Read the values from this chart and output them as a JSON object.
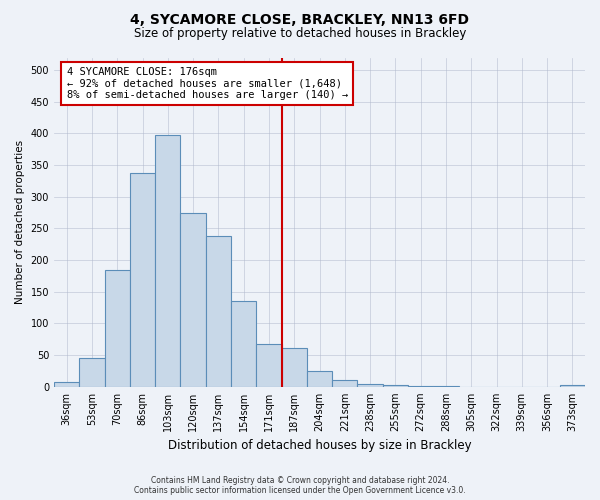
{
  "title": "4, SYCAMORE CLOSE, BRACKLEY, NN13 6FD",
  "subtitle": "Size of property relative to detached houses in Brackley",
  "xlabel": "Distribution of detached houses by size in Brackley",
  "ylabel": "Number of detached properties",
  "bin_labels": [
    "36sqm",
    "53sqm",
    "70sqm",
    "86sqm",
    "103sqm",
    "120sqm",
    "137sqm",
    "154sqm",
    "171sqm",
    "187sqm",
    "204sqm",
    "221sqm",
    "238sqm",
    "255sqm",
    "272sqm",
    "288sqm",
    "305sqm",
    "322sqm",
    "339sqm",
    "356sqm",
    "373sqm"
  ],
  "bar_heights": [
    8,
    45,
    185,
    338,
    397,
    275,
    238,
    135,
    68,
    62,
    25,
    11,
    5,
    3,
    2,
    1,
    0,
    0,
    0,
    0,
    3
  ],
  "bar_color": "#c8d8e8",
  "bar_edge_color": "#5b8db8",
  "vline_x": 9,
  "vline_label": "4 SYCAMORE CLOSE: 176sqm",
  "annotation_line1": "← 92% of detached houses are smaller (1,648)",
  "annotation_line2": "8% of semi-detached houses are larger (140) →",
  "annotation_box_color": "#ffffff",
  "annotation_box_edge": "#cc0000",
  "vline_color": "#cc0000",
  "ylim": [
    0,
    520
  ],
  "yticks": [
    0,
    50,
    100,
    150,
    200,
    250,
    300,
    350,
    400,
    450,
    500
  ],
  "footer_line1": "Contains HM Land Registry data © Crown copyright and database right 2024.",
  "footer_line2": "Contains public sector information licensed under the Open Government Licence v3.0.",
  "bg_color": "#eef2f8",
  "title_fontsize": 10,
  "subtitle_fontsize": 8.5,
  "xlabel_fontsize": 8.5,
  "ylabel_fontsize": 7.5,
  "tick_fontsize": 7,
  "footer_fontsize": 5.5,
  "ann_fontsize": 7.5
}
